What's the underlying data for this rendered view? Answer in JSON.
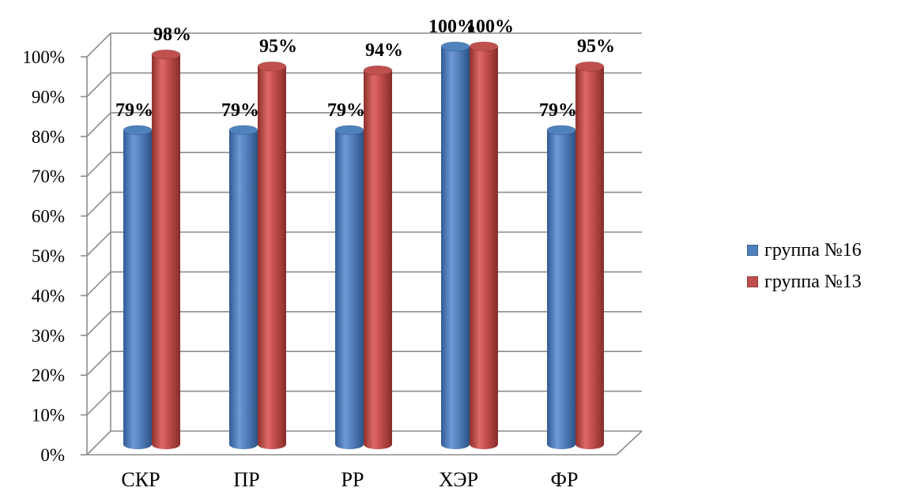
{
  "chart_data": {
    "type": "bar",
    "categories": [
      "СКР",
      "ПР",
      "РР",
      "ХЭР",
      "ФР"
    ],
    "series": [
      {
        "name": "группа №16",
        "values": [
          79,
          79,
          79,
          100,
          79
        ],
        "color": "#4f81bd",
        "labels": [
          "79%",
          "79%",
          "79%",
          "100%",
          "79%"
        ]
      },
      {
        "name": "группа №13",
        "values": [
          98,
          95,
          94,
          100,
          95
        ],
        "color": "#c0504d",
        "labels": [
          "98%",
          "95%",
          "94%",
          "100%",
          "95%"
        ]
      }
    ],
    "y_ticks": [
      "0%",
      "10%",
      "20%",
      "30%",
      "40%",
      "50%",
      "60%",
      "70%",
      "80%",
      "90%",
      "100%"
    ],
    "ylim": [
      0,
      100
    ],
    "grid": true,
    "three_d": true,
    "legend_position": "right"
  }
}
